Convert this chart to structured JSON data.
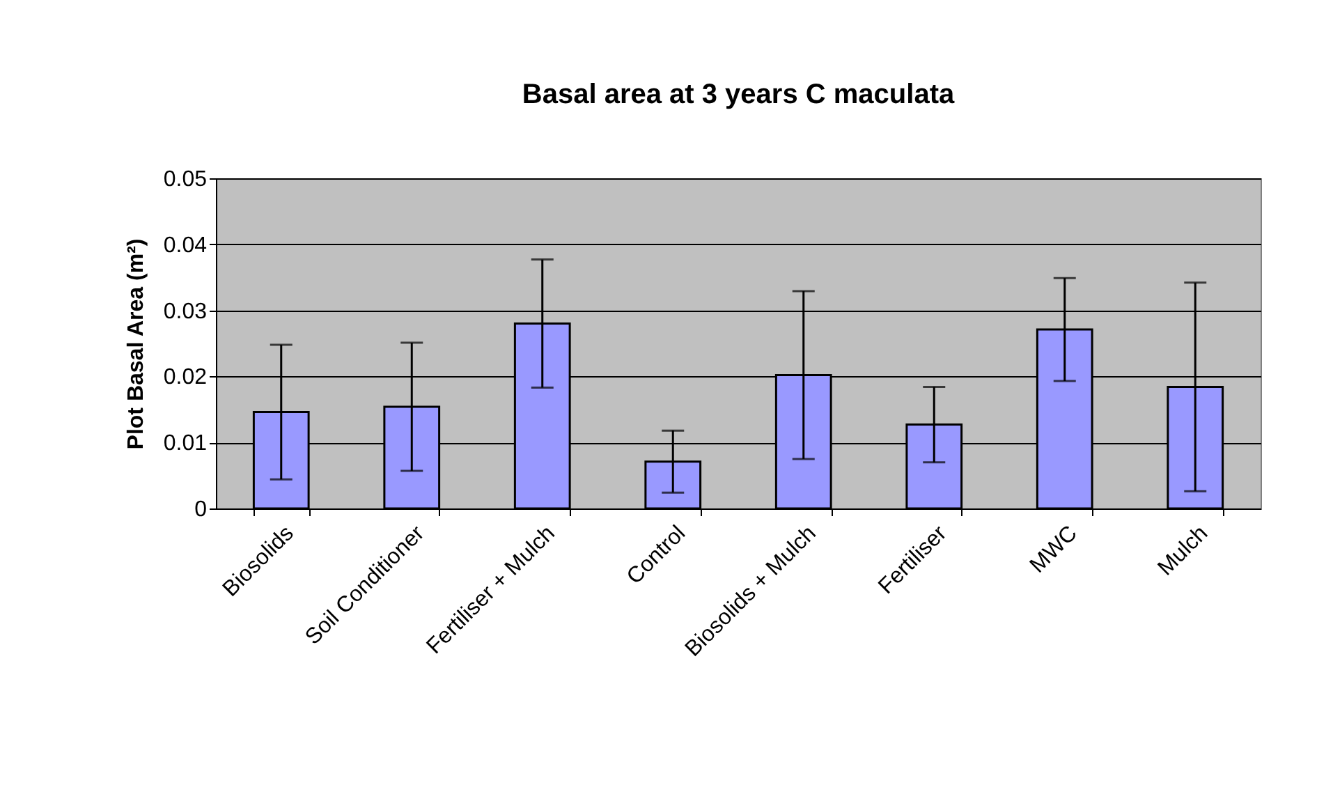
{
  "chart_data": {
    "type": "bar",
    "title": "Basal area at 3 years C maculata",
    "ylabel": "Plot Basal Area (m²)",
    "categories": [
      "Biosolids",
      "Soil Conditioner",
      "Fertiliser + Mulch",
      "Control",
      "Biosolids + Mulch",
      "Fertiliser",
      "MWC",
      "Mulch"
    ],
    "values": [
      0.0146,
      0.0154,
      0.028,
      0.0071,
      0.0202,
      0.0127,
      0.0271,
      0.0184
    ],
    "errors": [
      0.0102,
      0.0097,
      0.0097,
      0.0047,
      0.0127,
      0.0057,
      0.0078,
      0.0158
    ],
    "color": "#9999ff",
    "ylim": [
      0,
      0.05
    ],
    "yticks": [
      0,
      0.01,
      0.02,
      0.03,
      0.04,
      0.05
    ],
    "grid": "y"
  }
}
